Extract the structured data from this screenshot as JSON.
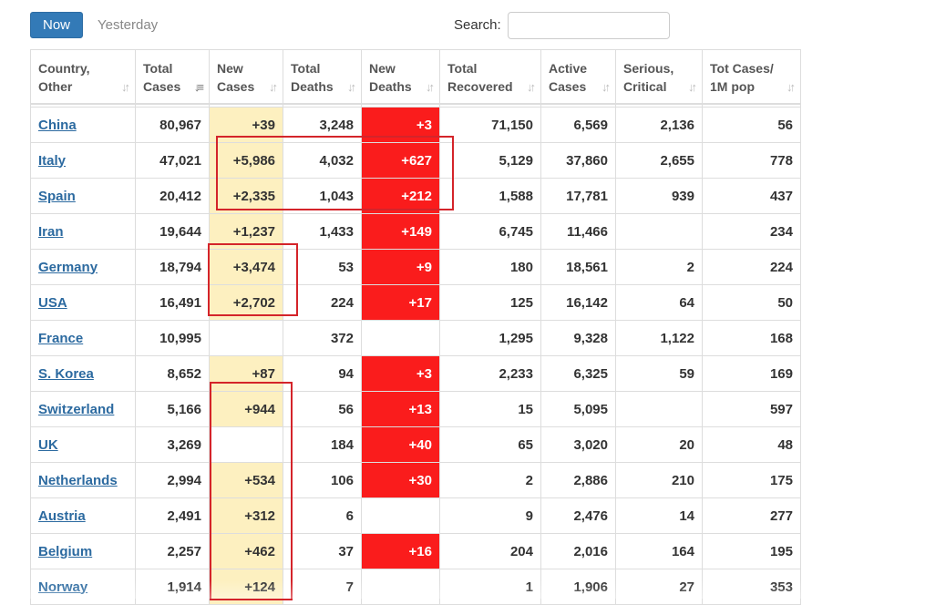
{
  "toolbar": {
    "now_label": "Now",
    "yesterday_label": "Yesterday",
    "search_label": "Search:",
    "search_value": ""
  },
  "headers": [
    {
      "line1": "Country,",
      "line2": "Other"
    },
    {
      "line1": "Total",
      "line2": "Cases"
    },
    {
      "line1": "New",
      "line2": "Cases"
    },
    {
      "line1": "Total",
      "line2": "Deaths"
    },
    {
      "line1": "New",
      "line2": "Deaths"
    },
    {
      "line1": "Total",
      "line2": "Recovered"
    },
    {
      "line1": "Active",
      "line2": "Cases"
    },
    {
      "line1": "Serious,",
      "line2": "Critical"
    },
    {
      "line1": "Tot Cases/",
      "line2": "1M pop"
    }
  ],
  "sort_icon": "sort-arrows-icon",
  "active_sort_icon": "sort-descending-icon",
  "colors": {
    "accent": "#337ab7",
    "new_cases_bg": "#fdf0c0",
    "new_deaths_bg": "#fa1c1c",
    "highlight_box": "#d4242a",
    "link": "#2c6aa0"
  },
  "rows": [
    {
      "country": "China",
      "total_cases": "80,967",
      "new_cases": "+39",
      "total_deaths": "3,248",
      "new_deaths": "+3",
      "total_recovered": "71,150",
      "active_cases": "6,569",
      "serious": "2,136",
      "per_million": "56"
    },
    {
      "country": "Italy",
      "total_cases": "47,021",
      "new_cases": "+5,986",
      "total_deaths": "4,032",
      "new_deaths": "+627",
      "total_recovered": "5,129",
      "active_cases": "37,860",
      "serious": "2,655",
      "per_million": "778"
    },
    {
      "country": "Spain",
      "total_cases": "20,412",
      "new_cases": "+2,335",
      "total_deaths": "1,043",
      "new_deaths": "+212",
      "total_recovered": "1,588",
      "active_cases": "17,781",
      "serious": "939",
      "per_million": "437"
    },
    {
      "country": "Iran",
      "total_cases": "19,644",
      "new_cases": "+1,237",
      "total_deaths": "1,433",
      "new_deaths": "+149",
      "total_recovered": "6,745",
      "active_cases": "11,466",
      "serious": "",
      "per_million": "234"
    },
    {
      "country": "Germany",
      "total_cases": "18,794",
      "new_cases": "+3,474",
      "total_deaths": "53",
      "new_deaths": "+9",
      "total_recovered": "180",
      "active_cases": "18,561",
      "serious": "2",
      "per_million": "224"
    },
    {
      "country": "USA",
      "total_cases": "16,491",
      "new_cases": "+2,702",
      "total_deaths": "224",
      "new_deaths": "+17",
      "total_recovered": "125",
      "active_cases": "16,142",
      "serious": "64",
      "per_million": "50"
    },
    {
      "country": "France",
      "total_cases": "10,995",
      "new_cases": "",
      "total_deaths": "372",
      "new_deaths": "",
      "total_recovered": "1,295",
      "active_cases": "9,328",
      "serious": "1,122",
      "per_million": "168"
    },
    {
      "country": "S. Korea",
      "total_cases": "8,652",
      "new_cases": "+87",
      "total_deaths": "94",
      "new_deaths": "+3",
      "total_recovered": "2,233",
      "active_cases": "6,325",
      "serious": "59",
      "per_million": "169"
    },
    {
      "country": "Switzerland",
      "total_cases": "5,166",
      "new_cases": "+944",
      "total_deaths": "56",
      "new_deaths": "+13",
      "total_recovered": "15",
      "active_cases": "5,095",
      "serious": "",
      "per_million": "597"
    },
    {
      "country": "UK",
      "total_cases": "3,269",
      "new_cases": "",
      "total_deaths": "184",
      "new_deaths": "+40",
      "total_recovered": "65",
      "active_cases": "3,020",
      "serious": "20",
      "per_million": "48"
    },
    {
      "country": "Netherlands",
      "total_cases": "2,994",
      "new_cases": "+534",
      "total_deaths": "106",
      "new_deaths": "+30",
      "total_recovered": "2",
      "active_cases": "2,886",
      "serious": "210",
      "per_million": "175"
    },
    {
      "country": "Austria",
      "total_cases": "2,491",
      "new_cases": "+312",
      "total_deaths": "6",
      "new_deaths": "",
      "total_recovered": "9",
      "active_cases": "2,476",
      "serious": "14",
      "per_million": "277"
    },
    {
      "country": "Belgium",
      "total_cases": "2,257",
      "new_cases": "+462",
      "total_deaths": "37",
      "new_deaths": "+16",
      "total_recovered": "204",
      "active_cases": "2,016",
      "serious": "164",
      "per_million": "195"
    },
    {
      "country": "Norway",
      "total_cases": "1,914",
      "new_cases": "+124",
      "total_deaths": "7",
      "new_deaths": "",
      "total_recovered": "1",
      "active_cases": "1,906",
      "serious": "27",
      "per_million": "353"
    }
  ]
}
